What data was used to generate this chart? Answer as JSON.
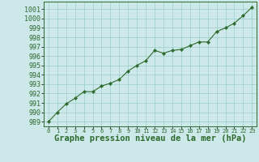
{
  "x": [
    0,
    1,
    2,
    3,
    4,
    5,
    6,
    7,
    8,
    9,
    10,
    11,
    12,
    13,
    14,
    15,
    16,
    17,
    18,
    19,
    20,
    21,
    22,
    23
  ],
  "y": [
    989.0,
    990.0,
    990.9,
    991.5,
    992.2,
    992.2,
    992.8,
    993.1,
    993.5,
    994.4,
    995.0,
    995.5,
    996.6,
    996.3,
    996.6,
    996.7,
    997.1,
    997.5,
    997.5,
    998.6,
    999.0,
    999.5,
    1000.3,
    1001.2
  ],
  "line_color": "#2d6a2d",
  "marker": "D",
  "marker_size": 2.2,
  "bg_color": "#cce8e8",
  "grid_color": "#99cccc",
  "xlabel": "Graphe pression niveau de la mer (hPa)",
  "xlabel_fontsize": 7.5,
  "ylabel_fontsize": 6,
  "xtick_fontsize": 5,
  "yticks": [
    989,
    990,
    991,
    992,
    993,
    994,
    995,
    996,
    997,
    998,
    999,
    1000,
    1001
  ],
  "xticks": [
    0,
    1,
    2,
    3,
    4,
    5,
    6,
    7,
    8,
    9,
    10,
    11,
    12,
    13,
    14,
    15,
    16,
    17,
    18,
    19,
    20,
    21,
    22,
    23
  ],
  "ylim": [
    988.5,
    1001.8
  ],
  "xlim": [
    -0.5,
    23.5
  ]
}
